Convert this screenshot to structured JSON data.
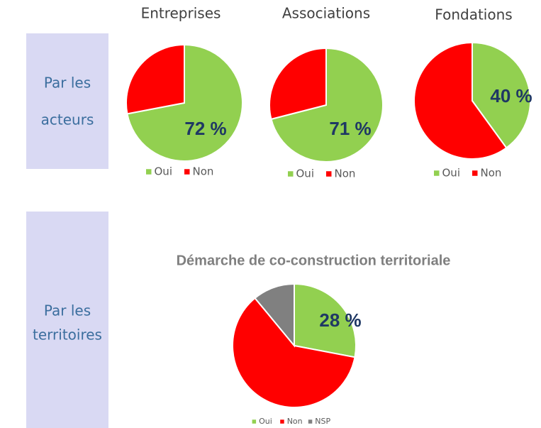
{
  "sections": [
    {
      "lines": [
        "Par les",
        "acteurs"
      ]
    },
    {
      "lines": [
        "Par les",
        "territoires"
      ]
    }
  ],
  "chart_data": [
    {
      "type": "pie",
      "title": "Entreprises",
      "categories": [
        "Oui",
        "Non"
      ],
      "values": [
        72,
        28
      ],
      "value_labels": [
        "72 %",
        null
      ],
      "colors": [
        "#92d050",
        "#ff0000"
      ],
      "legend": "bottom"
    },
    {
      "type": "pie",
      "title": "Associations",
      "categories": [
        "Oui",
        "Non"
      ],
      "values": [
        71,
        29
      ],
      "value_labels": [
        "71 %",
        null
      ],
      "colors": [
        "#92d050",
        "#ff0000"
      ],
      "legend": "bottom"
    },
    {
      "type": "pie",
      "title": "Fondations",
      "categories": [
        "Oui",
        "Non"
      ],
      "values": [
        40,
        60
      ],
      "value_labels": [
        "40 %",
        null
      ],
      "colors": [
        "#92d050",
        "#ff0000"
      ],
      "legend": "bottom"
    },
    {
      "type": "pie",
      "title": "Démarche de co-construction territoriale",
      "categories": [
        "Oui",
        "Non",
        "NSP"
      ],
      "values": [
        28,
        61,
        11
      ],
      "value_labels": [
        "28 %",
        null,
        null
      ],
      "colors": [
        "#92d050",
        "#ff0000",
        "#808080"
      ],
      "legend": "bottom"
    }
  ]
}
